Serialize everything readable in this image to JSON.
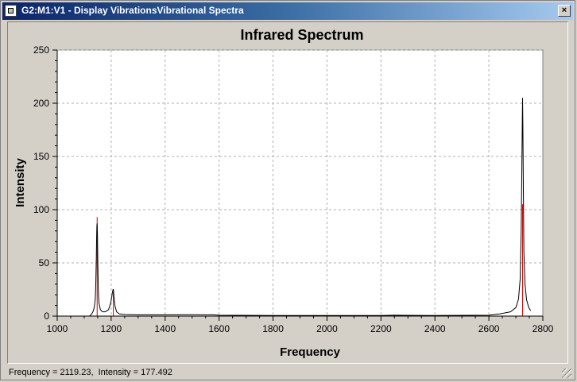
{
  "window": {
    "title": "G2:M1:V1 - Display VibrationsVibrational Spectra",
    "close_label": "×"
  },
  "status": {
    "text": "Frequency = 2119.23,  Intensity = 177.492"
  },
  "chart_data": {
    "type": "line",
    "title": "Infrared Spectrum",
    "xlabel": "Frequency",
    "ylabel": "Intensity",
    "xlim": [
      1000,
      2800
    ],
    "ylim": [
      0,
      250
    ],
    "x_ticks": [
      1000,
      1200,
      1400,
      1600,
      1800,
      2000,
      2200,
      2400,
      2600,
      2800
    ],
    "y_ticks": [
      0,
      50,
      100,
      150,
      200,
      250
    ],
    "grid": true,
    "sticks": [
      {
        "x": 1148,
        "y": 93
      },
      {
        "x": 1208,
        "y": 23
      },
      {
        "x": 2725,
        "y": 105
      }
    ],
    "series": [
      {
        "x": [
          1120,
          1128,
          1134,
          1138,
          1141,
          1143,
          1145,
          1146,
          1147,
          1148,
          1149,
          1150,
          1151,
          1153,
          1155,
          1160,
          1168,
          1178,
          1190,
          1198,
          1202,
          1205,
          1207,
          1208,
          1209,
          1211,
          1214,
          1220,
          1230,
          1250,
          1300,
          1400,
          1500,
          1580,
          1600,
          1800,
          2000,
          2200,
          2250,
          2400,
          2600,
          2640,
          2680,
          2700,
          2710,
          2716,
          2720,
          2722,
          2724,
          2725,
          2726,
          2728,
          2730,
          2734,
          2740,
          2748,
          2755
        ],
        "y": [
          0,
          2,
          5,
          9,
          16,
          30,
          55,
          75,
          85,
          87,
          78,
          60,
          40,
          20,
          12,
          6,
          4,
          4,
          6,
          12,
          18,
          23,
          25,
          25,
          23,
          17,
          10,
          4,
          2,
          1.5,
          1.2,
          1.2,
          1.3,
          1.2,
          0.8,
          0.6,
          0.6,
          0.6,
          0.8,
          0.5,
          0.8,
          2,
          4,
          8,
          16,
          35,
          80,
          130,
          185,
          205,
          180,
          110,
          60,
          30,
          15,
          8,
          5
        ]
      }
    ]
  },
  "colors": {
    "series": "#000000",
    "stick": "#cc0000",
    "plot_bg": "#ffffff",
    "grid": "#b0b0b0"
  }
}
